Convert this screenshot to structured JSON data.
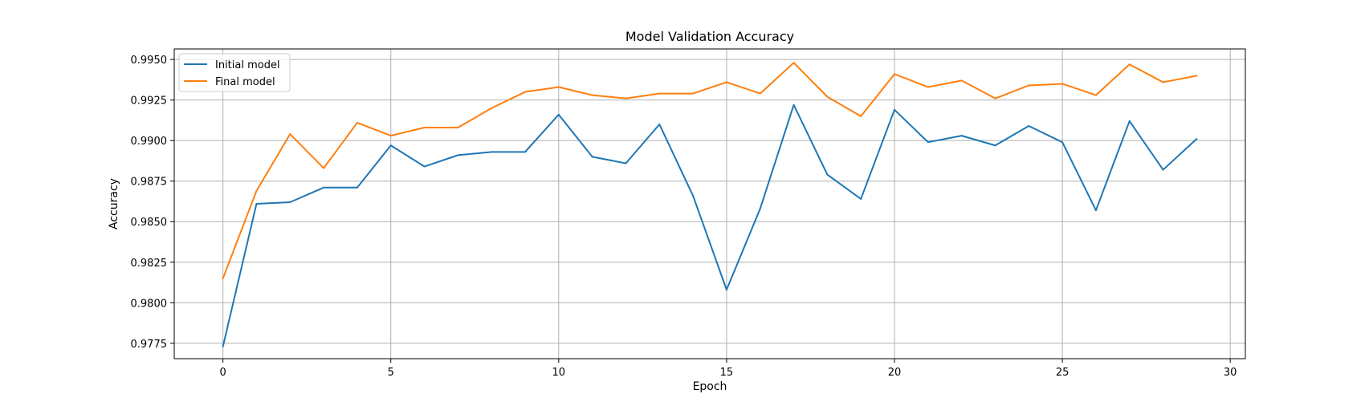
{
  "chart_data": {
    "type": "line",
    "title": "Model Validation Accuracy",
    "xlabel": "Epoch",
    "ylabel": "Accuracy",
    "xlim": [
      -1.45,
      30.45
    ],
    "ylim": [
      0.97655,
      0.99565
    ],
    "xticks": [
      0,
      5,
      10,
      15,
      20,
      25,
      30
    ],
    "xtick_labels": [
      "0",
      "5",
      "10",
      "15",
      "20",
      "25",
      "30"
    ],
    "yticks": [
      0.9775,
      0.98,
      0.9825,
      0.985,
      0.9875,
      0.99,
      0.9925,
      0.995
    ],
    "ytick_labels": [
      "0.9775",
      "0.9800",
      "0.9825",
      "0.9850",
      "0.9875",
      "0.9900",
      "0.9925",
      "0.9950"
    ],
    "grid": true,
    "legend_position": "top-left",
    "x": [
      0,
      1,
      2,
      3,
      4,
      5,
      6,
      7,
      8,
      9,
      10,
      11,
      12,
      13,
      14,
      15,
      16,
      17,
      18,
      19,
      20,
      21,
      22,
      23,
      24,
      25,
      26,
      27,
      28,
      29
    ],
    "series": [
      {
        "name": "Initial model",
        "color": "#1f77b4",
        "values": [
          0.9773,
          0.9861,
          0.9862,
          0.9871,
          0.9871,
          0.9897,
          0.9884,
          0.9891,
          0.9893,
          0.9893,
          0.9916,
          0.989,
          0.9886,
          0.991,
          0.9866,
          0.9808,
          0.9858,
          0.9922,
          0.9879,
          0.9864,
          0.9919,
          0.9899,
          0.9903,
          0.9897,
          0.9909,
          0.9899,
          0.9857,
          0.9912,
          0.9882,
          0.9901
        ]
      },
      {
        "name": "Final model",
        "color": "#ff7f0e",
        "values": [
          0.9815,
          0.9869,
          0.9904,
          0.9883,
          0.9911,
          0.9903,
          0.9908,
          0.9908,
          0.992,
          0.993,
          0.9933,
          0.9928,
          0.9926,
          0.9929,
          0.9929,
          0.9936,
          0.9929,
          0.9948,
          0.9927,
          0.9915,
          0.9941,
          0.9933,
          0.9937,
          0.9926,
          0.9934,
          0.9935,
          0.9928,
          0.9947,
          0.9936,
          0.994
        ]
      }
    ]
  }
}
